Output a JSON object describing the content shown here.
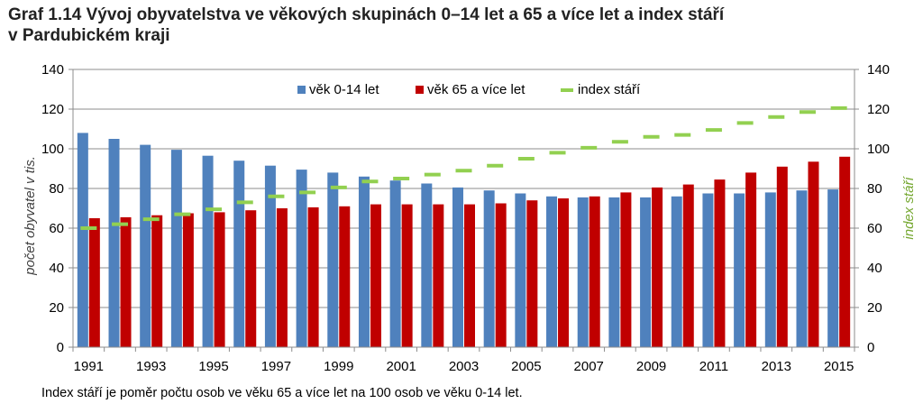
{
  "title_line1": "Graf 1.14 Vývoj obyvatelstva ve věkových skupinách 0–14 let a 65 a více let a index stáří",
  "title_line2": "v Pardubickém kraji",
  "note": "Index stáří je poměr počtu osob ve věku 65 a více let na 100 osob ve věku 0-14 let.",
  "colors": {
    "blue": "#4F81BD",
    "red": "#C00000",
    "green": "#92D050",
    "grid": "#8C8C8C",
    "axis_text": "#000000"
  },
  "chart_data": {
    "type": "bar",
    "categories": [
      "1991",
      "1992",
      "1993",
      "1994",
      "1995",
      "1996",
      "1997",
      "1998",
      "1999",
      "2000",
      "2001",
      "2002",
      "2003",
      "2004",
      "2005",
      "2006",
      "2007",
      "2008",
      "2009",
      "2010",
      "2011",
      "2012",
      "2013",
      "2014",
      "2015"
    ],
    "x_tick_labels": [
      "1991",
      "1993",
      "1995",
      "1997",
      "1999",
      "2001",
      "2003",
      "2005",
      "2007",
      "2009",
      "2011",
      "2013",
      "2015"
    ],
    "ylabel": "počet obyvatel v tis.",
    "y2label": "index stáří",
    "ylim": [
      0,
      140
    ],
    "y2lim": [
      0,
      140
    ],
    "y_ticks": [
      "0",
      "20",
      "40",
      "60",
      "80",
      "100",
      "120",
      "140"
    ],
    "grid": true,
    "legend_position": "top-center",
    "series": [
      {
        "name": "věk 0-14 let",
        "kind": "bar",
        "axis": "left",
        "values": [
          108,
          105,
          102,
          99.5,
          96.5,
          94,
          91.5,
          89.5,
          88,
          86,
          84,
          82.5,
          80.5,
          79,
          77.5,
          76,
          75.5,
          75.5,
          75.5,
          76,
          77.5,
          77.5,
          78,
          79,
          79.5
        ]
      },
      {
        "name": "věk 65 a více let",
        "kind": "bar",
        "axis": "left",
        "values": [
          65,
          65.5,
          66.5,
          67.5,
          68,
          69,
          70,
          70.5,
          71,
          72,
          72,
          72,
          72,
          72.5,
          74,
          75,
          76,
          78,
          80.5,
          82,
          84.5,
          88,
          91,
          93.5,
          96
        ]
      },
      {
        "name": "index stáří",
        "kind": "dash",
        "axis": "right",
        "values": [
          60,
          62,
          64.5,
          67,
          69.5,
          73,
          76,
          78,
          80.5,
          83.5,
          85,
          87,
          89,
          91.5,
          95,
          98,
          100.5,
          103.5,
          106,
          107,
          109.5,
          113,
          116,
          118.5,
          120.5
        ]
      }
    ]
  }
}
